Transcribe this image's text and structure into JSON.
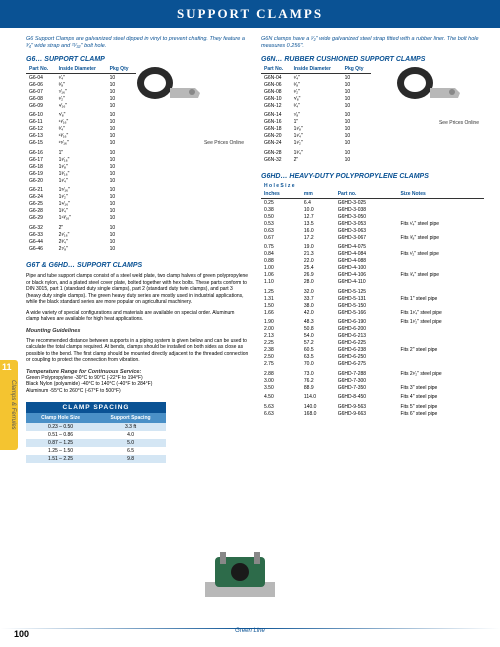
{
  "header": "SUPPORT CLAMPS",
  "intro_left": "G6 Support Clamps are galvanized steel dipped in vinyl to prevent chafing. They feature a ³⁄₄\" wide strap and ²¹⁄₃₂\" bolt hole.",
  "intro_right": "G6N clamps have a ¹⁄₂\" wide galvanized steel strap fitted with a rubber liner. The bolt hole measures 0.256\".",
  "g6": {
    "title": "G6… SUPPORT CLAMP",
    "cols": [
      "Part No.",
      "Inside Diameter",
      "Pkg Qty"
    ],
    "rows": [
      [
        "G6-04",
        "¹⁄₄\"",
        "10"
      ],
      [
        "G6-06",
        "³⁄₈\"",
        "10"
      ],
      [
        "G6-07",
        "⁷⁄₁₆\"",
        "10"
      ],
      [
        "G6-08",
        "¹⁄₂\"",
        "10"
      ],
      [
        "G6-09",
        "⁹⁄₁₆\"",
        "10"
      ],
      [
        "G6-10",
        "⁵⁄₈\"",
        "10"
      ],
      [
        "G6-11",
        "¹¹⁄₁₆\"",
        "10"
      ],
      [
        "G6-12",
        "³⁄₄\"",
        "10"
      ],
      [
        "G6-13",
        "¹³⁄₁₆\"",
        "10"
      ],
      [
        "G6-15",
        "¹⁵⁄₁₆\"",
        "10"
      ],
      [
        "G6-16",
        "1\"",
        "10"
      ],
      [
        "G6-17",
        "1¹⁄₁₆\"",
        "10"
      ],
      [
        "G6-18",
        "1¹⁄₈\"",
        "10"
      ],
      [
        "G6-19",
        "1³⁄₁₆\"",
        "10"
      ],
      [
        "G6-20",
        "1¹⁄₄\"",
        "10"
      ],
      [
        "G6-21",
        "1⁵⁄₁₆\"",
        "10"
      ],
      [
        "G6-24",
        "1¹⁄₂\"",
        "10"
      ],
      [
        "G6-25",
        "1⁹⁄₁₆\"",
        "10"
      ],
      [
        "G6-28",
        "1³⁄₄\"",
        "10"
      ],
      [
        "G6-29",
        "1¹³⁄₁₆\"",
        "10"
      ],
      [
        "G6-32",
        "2\"",
        "10"
      ],
      [
        "G6-33",
        "2¹⁄₁₆\"",
        "10"
      ],
      [
        "G6-44",
        "2³⁄₄\"",
        "10"
      ],
      [
        "G6-46",
        "2⁷⁄₈\"",
        "10"
      ]
    ],
    "gaps": [
      5,
      10,
      15,
      20
    ],
    "note": "See Prices Online"
  },
  "g6n": {
    "title": "G6N… RUBBER CUSHIONED SUPPORT CLAMPS",
    "cols": [
      "Part No.",
      "Inside Diameter",
      "Pkg Qty"
    ],
    "rows": [
      [
        "G6N-04",
        "¹⁄₄\"",
        "10"
      ],
      [
        "G6N-06",
        "³⁄₈\"",
        "10"
      ],
      [
        "G6N-08",
        "¹⁄₂\"",
        "10"
      ],
      [
        "G6N-10",
        "⁵⁄₈\"",
        "10"
      ],
      [
        "G6N-12",
        "³⁄₄\"",
        "10"
      ],
      [
        "G6N-14",
        "⁷⁄₈\"",
        "10"
      ],
      [
        "G6N-16",
        "1\"",
        "10"
      ],
      [
        "G6N-18",
        "1¹⁄₈\"",
        "10"
      ],
      [
        "G6N-20",
        "1¹⁄₄\"",
        "10"
      ],
      [
        "G6N-24",
        "1¹⁄₂\"",
        "10"
      ],
      [
        "G6N-28",
        "1³⁄₄\"",
        "10"
      ],
      [
        "G6N-32",
        "2\"",
        "10"
      ]
    ],
    "gaps": [
      5,
      10
    ],
    "note": "See Prices Online"
  },
  "g6hd": {
    "title": "G6HD… HEAVY-DUTY POLYPROPYLENE CLAMPS",
    "cols": [
      "Inches",
      "mm",
      "Part no.",
      "Size Notes"
    ],
    "hole_label": "H o l e   S i z e",
    "rows": [
      [
        "0.25",
        "6.4",
        "G6HD-3-025",
        ""
      ],
      [
        "0.38",
        "10.0",
        "G6HD-3-038",
        ""
      ],
      [
        "0.50",
        "12.7",
        "G6HD-3-050",
        ""
      ],
      [
        "0.53",
        "13.5",
        "G6HD-3-053",
        "Fits ¹⁄₄\" steel pipe"
      ],
      [
        "0.63",
        "16.0",
        "G6HD-3-063",
        ""
      ],
      [
        "0.67",
        "17.2",
        "G6HD-3-067",
        "Fits ³⁄₈\" steel pipe"
      ],
      [
        "0.75",
        "19.0",
        "G6HD-4-075",
        ""
      ],
      [
        "0.84",
        "21.3",
        "G6HD-4-084",
        "Fits ¹⁄₂\" steel pipe"
      ],
      [
        "0.88",
        "22.0",
        "G6HD-4-088",
        ""
      ],
      [
        "1.00",
        "25.4",
        "G6HD-4-100",
        ""
      ],
      [
        "1.06",
        "26.9",
        "G6HD-4-106",
        "Fits ³⁄₄\" steel pipe"
      ],
      [
        "1.10",
        "28.0",
        "G6HD-4-110",
        ""
      ],
      [
        "1.25",
        "32.0",
        "G6HD-5-125",
        ""
      ],
      [
        "1.31",
        "33.7",
        "G6HD-5-131",
        "Fits 1\" steel pipe"
      ],
      [
        "1.50",
        "38.0",
        "G6HD-5-150",
        ""
      ],
      [
        "1.66",
        "42.0",
        "G6HD-5-166",
        "Fits 1¹⁄₄\" steel pipe"
      ],
      [
        "1.90",
        "48.3",
        "G6HD-6-190",
        "Fits 1¹⁄₂\" steel pipe"
      ],
      [
        "2.00",
        "50.8",
        "G6HD-6-200",
        ""
      ],
      [
        "2.13",
        "54.0",
        "G6HD-6-213",
        ""
      ],
      [
        "2.25",
        "57.2",
        "G6HD-6-225",
        ""
      ],
      [
        "2.38",
        "60.5",
        "G6HD-6-238",
        "Fits 2\" steel pipe"
      ],
      [
        "2.50",
        "63.5",
        "G6HD-6-250",
        ""
      ],
      [
        "2.75",
        "70.0",
        "G6HD-6-275",
        ""
      ],
      [
        "2.88",
        "73.0",
        "G6HD-7-288",
        "Fits 2¹⁄₂\" steel pipe"
      ],
      [
        "3.00",
        "76.2",
        "G6HD-7-300",
        ""
      ],
      [
        "3.50",
        "88.9",
        "G6HD-7-350",
        "Fits 3\" steel pipe"
      ],
      [
        "4.50",
        "114.0",
        "G6HD-8-450",
        "Fits 4\" steel pipe"
      ],
      [
        "5.63",
        "140.0",
        "G6HD-9-563",
        "Fits 5\" steel pipe"
      ],
      [
        "6.63",
        "168.0",
        "G6HD-9-663",
        "Fits 6\" steel pipe"
      ]
    ],
    "gaps": [
      6,
      12,
      16,
      23,
      26,
      27
    ]
  },
  "g6t_section": {
    "title": "G6T & G6HD… SUPPORT CLAMPS",
    "p1": "Pipe and tube support clamps consist of a steel weld plate, two clamp halves of green polypropylene or black nylon, and a plated steel cover plate, bolted together with hex bolts. These parts conform to DIN 3015, part 1 (standard duty single clamps), part 2 (standard duty twin clamps), and part 3 (heavy duty single clamps). The green heavy duty series are mostly used in industrial applications, while the black standard series are more popular on agricultural machinery.",
    "p2": "A wide variety of special configurations and materials are available on special order. Aluminum clamp halves are available for high heat applications.",
    "mounting_title": "Mounting Guidelines",
    "p3": "The recommended distance between supports in a piping system is given below and can be used to calculate the total clamps required. At bends, clamps should be installed on both sides as close as possible to the bend. The first clamp should be mounted directly adjacent to the threaded connection or coupling to protect the connection from vibration.",
    "temp_title": "Temperature Range for Continuous Service:",
    "temp1": "Green Polypropylene -30°C to 90°C (-22°F to 194°F)",
    "temp2": "Black Nylon (polyamide) -40°C to 140°C (-40°F to 284°F)",
    "temp3": "Aluminum -55°C to 260°C (-67°F to 500°F)"
  },
  "spacing": {
    "title": "CLAMP SPACING",
    "cols": [
      "Clamp Hole Size",
      "Support Spacing"
    ],
    "rows": [
      [
        "0.23 – 0.50",
        "3.3 ft"
      ],
      [
        "0.51 – 0.86",
        "4.0"
      ],
      [
        "0.87 – 1.25",
        "5.0"
      ],
      [
        "1.25 – 1.50",
        "6.5"
      ],
      [
        "1.51 – 2.25",
        "9.8"
      ]
    ]
  },
  "side_tab": {
    "num": "11",
    "label": "Clamps & Ferrules"
  },
  "footer": {
    "brand": "Green Line",
    "page": "100"
  },
  "colors": {
    "primary": "#0a5294",
    "accent": "#f4c430",
    "lightblue": "#d4e6f4",
    "midblue": "#4a90c7"
  }
}
